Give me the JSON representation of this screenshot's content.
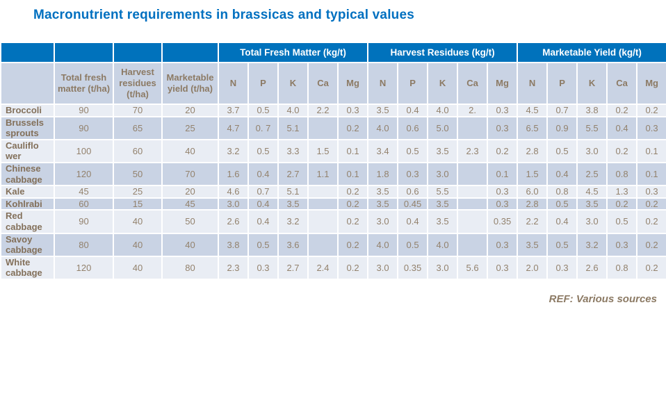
{
  "title": "Macronutrient requirements in brassicas and typical values",
  "footer": {
    "ref_label": "REF: Various sources"
  },
  "colors": {
    "title_blue": "#0070C0",
    "header_blue": "#0072BC",
    "subheader_bg": "#C9D3E4",
    "row_light_bg": "#E9EDF4",
    "row_dark_bg": "#C9D3E4",
    "text_brown": "#93826D",
    "label_brown": "#83705A",
    "grid_line": "#FFFFFF"
  },
  "table": {
    "group_headers": [
      "Total Fresh Matter (kg/t)",
      "Harvest Residues (kg/t)",
      "Marketable Yield (kg/t)"
    ],
    "sub_headers": [
      "Total fresh matter (t/ha)",
      "Harvest residues (t/ha)",
      "Marketable yield (t/ha)"
    ],
    "nutrients": [
      "N",
      "P",
      "K",
      "Ca",
      "Mg"
    ],
    "rows": [
      {
        "label": "Broccoli",
        "values": [
          "90",
          "70",
          "20",
          "3.7",
          "0.5",
          "4.0",
          "2.2",
          "0.3",
          "3.5",
          "0.4",
          "4.0",
          "2.",
          "0.3",
          "4.5",
          "0.7",
          "3.8",
          "0.2",
          "0.2"
        ]
      },
      {
        "label": "Brussels\nsprouts",
        "values": [
          "90",
          "65",
          "25",
          "4.7",
          "0. 7",
          "5.1",
          "",
          "0.2",
          "4.0",
          "0.6",
          "5.0",
          "",
          "0.3",
          "6.5",
          "0.9",
          "5.5",
          "0.4",
          "0.3"
        ]
      },
      {
        "label": "Cauliflo\nwer",
        "values": [
          "100",
          "60",
          "40",
          "3.2",
          "0.5",
          "3.3",
          "1.5",
          "0.1",
          "3.4",
          "0.5",
          "3.5",
          "2.3",
          "0.2",
          "2.8",
          "0.5",
          "3.0",
          "0.2",
          "0.1"
        ]
      },
      {
        "label": "Chinese\ncabbage",
        "values": [
          "120",
          "50",
          "70",
          "1.6",
          "0.4",
          "2.7",
          "1.1",
          "0.1",
          "1.8",
          "0.3",
          "3.0",
          "",
          "0.1",
          "1.5",
          "0.4",
          "2.5",
          "0.8",
          "0.1"
        ]
      },
      {
        "label": "Kale",
        "values": [
          "45",
          "25",
          "20",
          "4.6",
          "0.7",
          "5.1",
          "",
          "0.2",
          "3.5",
          "0.6",
          "5.5",
          "",
          "0.3",
          "6.0",
          "0.8",
          "4.5",
          "1.3",
          "0.3"
        ]
      },
      {
        "label": "Kohlrabi",
        "values": [
          "60",
          "15",
          "45",
          "3.0",
          "0.4",
          "3.5",
          "",
          "0.2",
          "3.5",
          "0.45",
          "3.5",
          "",
          "0.3",
          "2.8",
          "0.5",
          "3.5",
          "0.2",
          "0.2"
        ]
      },
      {
        "label": "Red\ncabbage",
        "values": [
          "90",
          "40",
          "50",
          "2.6",
          "0.4",
          "3.2",
          "",
          "0.2",
          "3.0",
          "0.4",
          "3.5",
          "",
          "0.35",
          "2.2",
          "0.4",
          "3.0",
          "0.5",
          "0.2"
        ]
      },
      {
        "label": "Savoy\ncabbage",
        "values": [
          "80",
          "40",
          "40",
          "3.8",
          "0.5",
          "3.6",
          "",
          "0.2",
          "4.0",
          "0.5",
          "4.0",
          "",
          "0.3",
          "3.5",
          "0.5",
          "3.2",
          "0.3",
          "0.2"
        ]
      },
      {
        "label": "White\ncabbage",
        "values": [
          "120",
          "40",
          "80",
          "2.3",
          "0.3",
          "2.7",
          "2.4",
          "0.2",
          "3.0",
          "0.35",
          "3.0",
          "5.6",
          "0.3",
          "2.0",
          "0.3",
          "2.6",
          "0.8",
          "0.2"
        ]
      }
    ]
  }
}
